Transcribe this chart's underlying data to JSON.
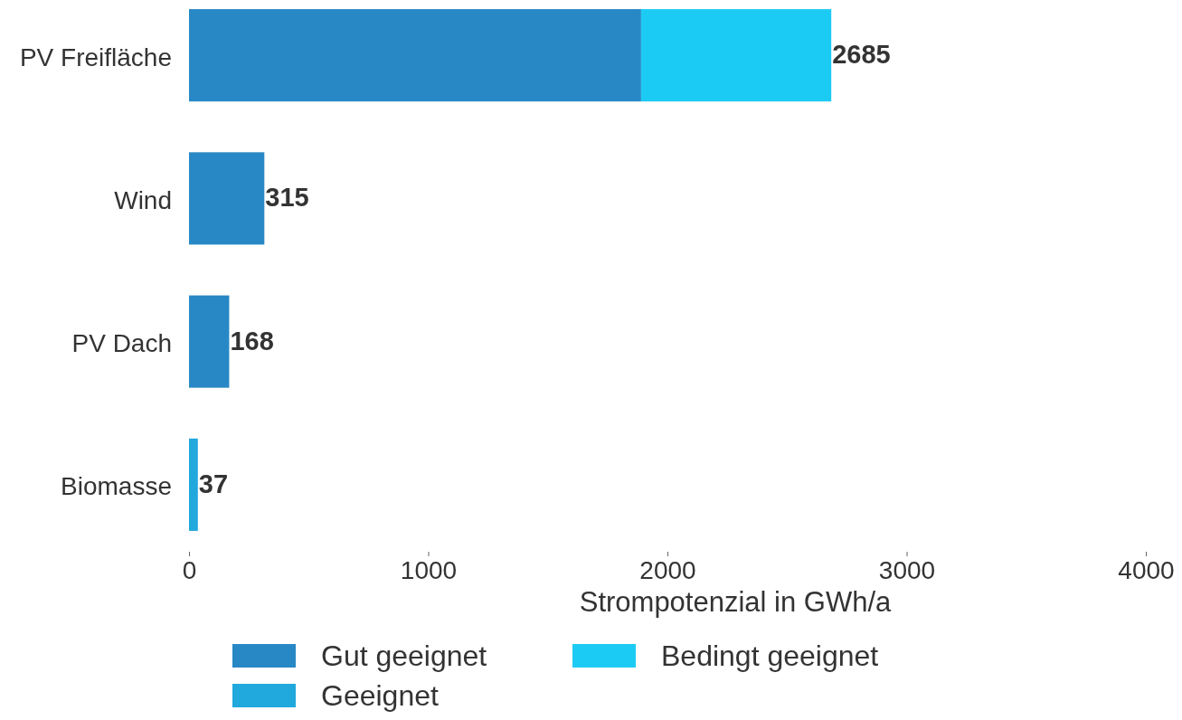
{
  "chart_data": {
    "type": "bar",
    "orientation": "horizontal",
    "stacked": true,
    "categories": [
      "PV Freifläche",
      "Wind",
      "PV Dach",
      "Biomasse"
    ],
    "series": [
      {
        "name": "Gut geeignet",
        "color": "#2888c5",
        "values": [
          1890,
          315,
          168,
          null
        ]
      },
      {
        "name": "Geeignet",
        "color": "#21a8dc",
        "values": [
          null,
          null,
          null,
          37
        ]
      },
      {
        "name": "Bedingt geeignet",
        "color": "#1ccbf4",
        "values": [
          795,
          null,
          null,
          null
        ]
      }
    ],
    "xlim": [
      0,
      4000
    ],
    "xticks": [
      0,
      1000,
      2000,
      3000,
      4000
    ],
    "xlabel": "Strompotenzial in GWh/a",
    "totals": [
      "2685",
      "315",
      "168",
      "37"
    ],
    "legend": "bottom"
  }
}
